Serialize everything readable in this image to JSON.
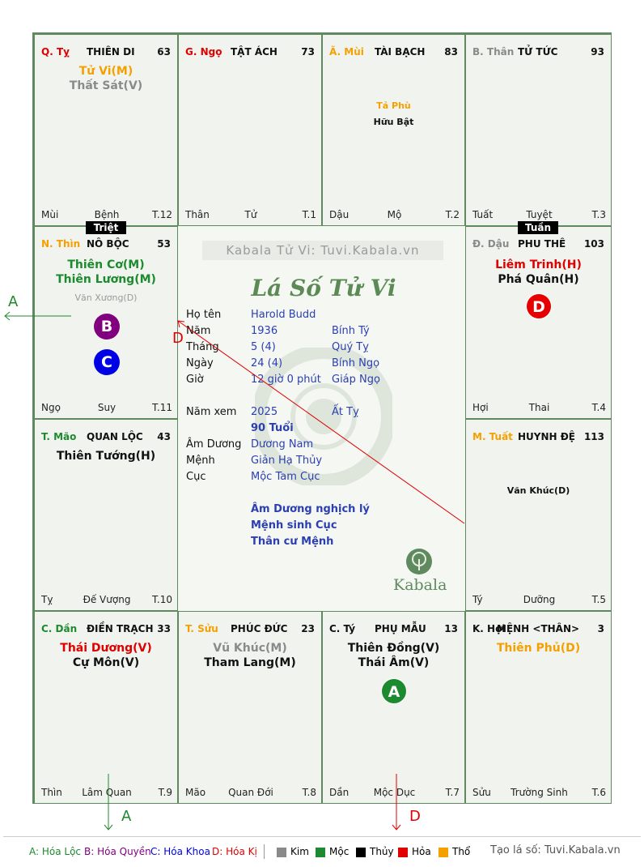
{
  "palaces": {
    "ty_snake": {
      "branch": "Q. Tỵ",
      "name": "THIÊN DI",
      "num": "63",
      "s1": "Tử Vi(M)",
      "s2": "Thất Sát(V)",
      "f1": "Mùi",
      "f2": "Bệnh",
      "f3": "T.12"
    },
    "ngo_horse": {
      "branch": "G. Ngọ",
      "name": "TẬT ÁCH",
      "num": "73",
      "f1": "Thân",
      "f2": "Tử",
      "f3": "T.1"
    },
    "mui_goat": {
      "branch": "Ã. Mùi",
      "name": "TÀI BẠCH",
      "num": "83",
      "s1": "Tả Phù",
      "s2": "Hữu Bật",
      "f1": "Dậu",
      "f2": "Mộ",
      "f3": "T.2"
    },
    "than_monkey": {
      "branch": "B. Thân",
      "name": "TỬ TỨC",
      "num": "93",
      "f1": "Tuất",
      "f2": "Tuyệt",
      "f3": "T.3"
    },
    "thin_dragon": {
      "branch": "N. Thìn",
      "name": "NÔ BỘC",
      "num": "53",
      "s1": "Thiên Cơ(M)",
      "s2": "Thiên Lương(M)",
      "s3": "Văn Xương(D)",
      "f1": "Ngọ",
      "f2": "Suy",
      "f3": "T.11"
    },
    "dau_rooster": {
      "branch": "Đ. Dậu",
      "name": "PHU THÊ",
      "num": "103",
      "s1": "Liêm Trinh(H)",
      "s2": "Phá Quân(H)",
      "f1": "Hợi",
      "f2": "Thai",
      "f3": "T.4"
    },
    "mao_rabbit": {
      "branch": "T. Mão",
      "name": "QUAN LỘC",
      "num": "43",
      "s1": "Thiên Tướng(H)",
      "f1": "Tỵ",
      "f2": "Đế Vượng",
      "f3": "T.10"
    },
    "tuat_dog": {
      "branch": "M. Tuất",
      "name": "HUYNH ĐỆ",
      "num": "113",
      "s1": "Văn Khúc(D)",
      "f1": "Tý",
      "f2": "Dưỡng",
      "f3": "T.5"
    },
    "dan_tiger": {
      "branch": "C. Dần",
      "name": "ĐIỀN TRẠCH",
      "num": "33",
      "s1": "Thái Dương(V)",
      "s2": "Cự Môn(V)",
      "f1": "Thìn",
      "f2": "Lâm Quan",
      "f3": "T.9"
    },
    "suu_ox": {
      "branch": "T. Sửu",
      "name": "PHÚC ĐỨC",
      "num": "23",
      "s1": "Vũ Khúc(M)",
      "s2": "Tham Lang(M)",
      "f1": "Mão",
      "f2": "Quan Đới",
      "f3": "T.8"
    },
    "ty_rat": {
      "branch": "C. Tý",
      "name": "PHỤ MẪU",
      "num": "13",
      "s1": "Thiên Đồng(V)",
      "s2": "Thái Âm(V)",
      "f1": "Dần",
      "f2": "Mộc Dục",
      "f3": "T.7"
    },
    "hoi_pig": {
      "branch": "K. Hợi",
      "name": "MỆNH <THÂN>",
      "num": "3",
      "s1": "Thiên Phủ(D)",
      "f1": "Sửu",
      "f2": "Trường Sinh",
      "f3": "T.6"
    }
  },
  "tags": {
    "triet": "Triệt",
    "tuan": "Tuần"
  },
  "markers": {
    "a": "A",
    "b": "B",
    "c": "C",
    "d": "D"
  },
  "center": {
    "site": "Kabala Tử Vi: Tuvi.Kabala.vn",
    "title": "Lá Số Tử Vi",
    "ho_ten_l": "Họ tên",
    "ho_ten_v": "Harold Budd",
    "nam_l": "Năm",
    "nam_v": "1936",
    "nam_c": "Bính Tý",
    "thang_l": "Tháng",
    "thang_v": "5  (4)",
    "thang_c": "Quý Tỵ",
    "ngay_l": "Ngày",
    "ngay_v": "24  (4)",
    "ngay_c": "Bính Ngọ",
    "gio_l": "Giờ",
    "gio_v": "12 giờ 0 phút",
    "gio_c": "Giáp Ngọ",
    "namxem_l": "Năm xem",
    "namxem_v": "2025",
    "namxem_c": "Ất Tỵ",
    "tuoi": "90 Tuổi",
    "amduong_l": "Âm Dương",
    "amduong_v": "Dương Nam",
    "menh_l": "Mệnh",
    "menh_v": "Giản Hạ Thủy",
    "cuc_l": "Cục",
    "cuc_v": "Mộc Tam Cục",
    "n1": "Âm Dương nghịch lý",
    "n2": "Mệnh sinh Cục",
    "n3": "Thân cư Mệnh",
    "brand": "Kabala"
  },
  "legend": {
    "a": "A: Hóa Lộc",
    "b": "B: Hóa Quyền",
    "c": "C: Hóa Khoa",
    "d": "D: Hóa Kị",
    "kim": "Kim",
    "moc": "Mộc",
    "thuy": "Thủy",
    "hoa": "Hỏa",
    "tho": "Thổ",
    "site": "Tạo lá số: Tuvi.Kabala.vn"
  },
  "colors": {
    "kim": "#8a8a8a",
    "moc": "#1c8a2e",
    "thuy": "#000000",
    "hoa": "#e00000",
    "tho": "#f5a000",
    "border": "#5f8a5f",
    "blue": "#2b3fb0"
  }
}
